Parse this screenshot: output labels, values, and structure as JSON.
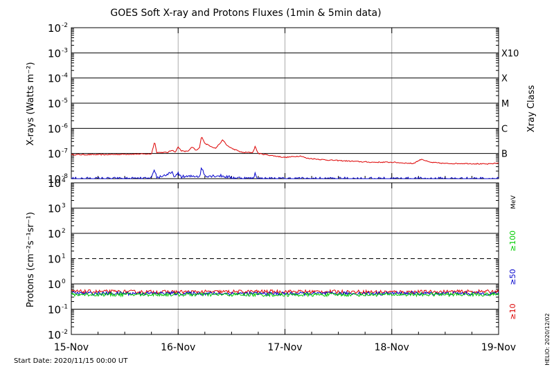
{
  "title": "GOES Soft X-ray and Protons Fluxes   (1min & 5min data)",
  "start_date": "Start Date: 2020/11/15 00:00 UT",
  "credit": "HELIO: 2020/12/02",
  "colors": {
    "xray_long": "#dd0000",
    "xray_short": "#0000cc",
    "p10": "#dd0000",
    "p50": "#0000cc",
    "p100": "#00cc00",
    "grid": "#000000",
    "day_line": "#aaaaaa"
  },
  "chart_data": [
    {
      "type": "line",
      "panel": "xray",
      "ylabel": "X-rays (Watts m⁻²)",
      "y_scale": "log",
      "ylim": [
        1e-08,
        0.01
      ],
      "y_ticks": [
        {
          "base": "10",
          "exp": "-8"
        },
        {
          "base": "10",
          "exp": "-7"
        },
        {
          "base": "10",
          "exp": "-6"
        },
        {
          "base": "10",
          "exp": "-5"
        },
        {
          "base": "10",
          "exp": "-4"
        },
        {
          "base": "10",
          "exp": "-3"
        },
        {
          "base": "10",
          "exp": "-2"
        }
      ],
      "right_axis_label": "Xray Class",
      "class_labels": [
        {
          "label": "B",
          "value": 1e-07
        },
        {
          "label": "C",
          "value": 1e-06
        },
        {
          "label": "M",
          "value": 1e-05
        },
        {
          "label": "X",
          "value": 0.0001
        },
        {
          "label": "X10",
          "value": 0.001
        }
      ],
      "x_ticks": [
        "15-Nov",
        "16-Nov",
        "17-Nov",
        "18-Nov",
        "19-Nov"
      ],
      "xlim_days": [
        0,
        4
      ],
      "series": [
        {
          "color": "#dd0000",
          "x_days": [
            0.0,
            0.3,
            0.6,
            0.75,
            0.78,
            0.8,
            0.9,
            0.95,
            0.97,
            1.0,
            1.03,
            1.06,
            1.1,
            1.13,
            1.17,
            1.2,
            1.22,
            1.25,
            1.28,
            1.35,
            1.42,
            1.45,
            1.5,
            1.6,
            1.7,
            1.72,
            1.75,
            1.9,
            2.0,
            2.15,
            2.2,
            2.4,
            2.6,
            2.8,
            3.0,
            3.2,
            3.28,
            3.35,
            3.5,
            3.7,
            3.9,
            4.0
          ],
          "values": [
            9e-08,
            9e-08,
            9.5e-08,
            9.5e-08,
            3e-07,
            1.1e-07,
            1.1e-07,
            1.4e-07,
            1.1e-07,
            1.8e-07,
            1.3e-07,
            1.2e-07,
            1.3e-07,
            1.8e-07,
            1.3e-07,
            1.7e-07,
            5e-07,
            2.5e-07,
            2.2e-07,
            1.6e-07,
            3.5e-07,
            2.2e-07,
            1.6e-07,
            1.1e-07,
            1.1e-07,
            1.9e-07,
            1e-07,
            8e-08,
            7e-08,
            8e-08,
            6.5e-08,
            5.5e-08,
            5e-08,
            4.5e-08,
            4.5e-08,
            4e-08,
            6e-08,
            4.5e-08,
            4e-08,
            4e-08,
            3.8e-08,
            4.2e-08
          ]
        },
        {
          "color": "#0000cc",
          "x_days": [
            0.0,
            0.5,
            0.75,
            0.78,
            0.8,
            0.95,
            0.97,
            1.0,
            1.03,
            1.1,
            1.17,
            1.2,
            1.22,
            1.25,
            1.4,
            1.5,
            1.7,
            1.72,
            1.75,
            1.9,
            2.1,
            2.5,
            3.0,
            3.5,
            4.0
          ],
          "values": [
            1e-08,
            1e-08,
            1e-08,
            2.3e-08,
            1.1e-08,
            1.7e-08,
            1.1e-08,
            1.6e-08,
            1.2e-08,
            1.2e-08,
            1.3e-08,
            1.2e-08,
            2.8e-08,
            1.3e-08,
            1.3e-08,
            1.1e-08,
            1e-08,
            1.6e-08,
            1e-08,
            1e-08,
            1e-08,
            1e-08,
            1e-08,
            1e-08,
            1e-08
          ]
        }
      ]
    },
    {
      "type": "line",
      "panel": "protons",
      "ylabel": "Protons (cm⁻²s⁻¹sr⁻¹)",
      "y_scale": "log",
      "ylim": [
        0.01,
        10000
      ],
      "y_ticks": [
        {
          "base": "10",
          "exp": "-2"
        },
        {
          "base": "10",
          "exp": "-1"
        },
        {
          "base": "10",
          "exp": "0"
        },
        {
          "base": "10",
          "exp": "1"
        },
        {
          "base": "10",
          "exp": "2"
        },
        {
          "base": "10",
          "exp": "3"
        },
        {
          "base": "10",
          "exp": "4"
        }
      ],
      "threshold": 10,
      "energy_unit": "MeV",
      "energy_labels": [
        "≥100",
        "≥50",
        "≥10"
      ],
      "x_ticks": [
        "15-Nov",
        "16-Nov",
        "17-Nov",
        "18-Nov",
        "19-Nov"
      ],
      "xlim_days": [
        0,
        4
      ],
      "series": [
        {
          "name": "≥10",
          "color": "#dd0000",
          "x_days": [
            0,
            1,
            2,
            3,
            4
          ],
          "values": [
            0.5,
            0.48,
            0.5,
            0.48,
            0.5
          ]
        },
        {
          "name": "≥50",
          "color": "#0000cc",
          "x_days": [
            0,
            1,
            2,
            3,
            4
          ],
          "values": [
            0.42,
            0.42,
            0.41,
            0.42,
            0.42
          ]
        },
        {
          "name": "≥100",
          "color": "#00cc00",
          "x_days": [
            0,
            1,
            2,
            3,
            4
          ],
          "values": [
            0.38,
            0.38,
            0.37,
            0.38,
            0.38
          ]
        }
      ]
    }
  ]
}
